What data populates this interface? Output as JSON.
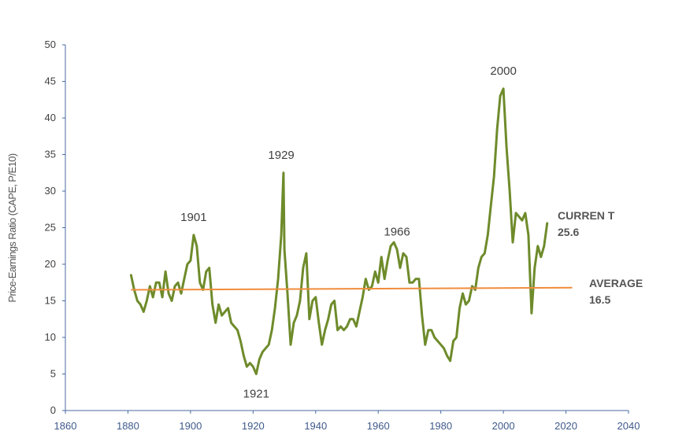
{
  "chart_data": {
    "type": "line",
    "ylabel": "Price-Earnings Ratio (CAPE, P/E10)",
    "xlim": [
      1860,
      2040
    ],
    "ylim": [
      0,
      50
    ],
    "x_ticks": [
      "1860",
      "1880",
      "1900",
      "1920",
      "1940",
      "1960",
      "1980",
      "2000",
      "2020",
      "2040"
    ],
    "y_ticks": [
      "0",
      "5",
      "10",
      "15",
      "20",
      "25",
      "30",
      "35",
      "40",
      "45",
      "50"
    ],
    "grid": false,
    "colors": {
      "series": "#6e8b2b",
      "average": "#f08c3c",
      "axis": "#4a6aa0"
    },
    "series": [
      {
        "x": [
          1881,
          1882,
          1883,
          1884,
          1885,
          1886,
          1887,
          1888,
          1889,
          1890,
          1891,
          1892,
          1893,
          1894,
          1895,
          1896,
          1897,
          1898,
          1899,
          1900,
          1901,
          1902,
          1903,
          1904,
          1905,
          1906,
          1907,
          1908,
          1909,
          1910,
          1911,
          1912,
          1913,
          1914,
          1915,
          1916,
          1917,
          1918,
          1919,
          1920,
          1921,
          1922,
          1923,
          1924,
          1925,
          1926,
          1927,
          1928,
          1929,
          1929.7,
          1930,
          1931,
          1932,
          1933,
          1934,
          1935,
          1936,
          1937,
          1938,
          1939,
          1940,
          1941,
          1942,
          1943,
          1944,
          1945,
          1946,
          1947,
          1948,
          1949,
          1950,
          1951,
          1952,
          1953,
          1954,
          1955,
          1956,
          1957,
          1958,
          1959,
          1960,
          1961,
          1962,
          1963,
          1964,
          1965,
          1966,
          1967,
          1968,
          1969,
          1970,
          1971,
          1972,
          1973,
          1974,
          1975,
          1976,
          1977,
          1978,
          1979,
          1980,
          1981,
          1982,
          1983,
          1984,
          1985,
          1986,
          1987,
          1988,
          1989,
          1990,
          1991,
          1992,
          1993,
          1994,
          1995,
          1996,
          1997,
          1998,
          1999,
          2000,
          2001,
          2002,
          2003,
          2004,
          2005,
          2006,
          2007,
          2008,
          2009,
          2010,
          2011,
          2012,
          2013,
          2014
        ],
        "values": [
          18.5,
          16.5,
          15.0,
          14.5,
          13.5,
          15.0,
          17.0,
          15.5,
          17.5,
          17.5,
          15.5,
          19.0,
          16.0,
          15.0,
          17.0,
          17.5,
          16.0,
          18.0,
          20.0,
          20.5,
          24.0,
          22.5,
          17.5,
          16.5,
          19.0,
          19.5,
          14.5,
          12.0,
          14.5,
          13.0,
          13.5,
          14.0,
          12.0,
          11.5,
          11.0,
          9.5,
          7.5,
          6.0,
          6.5,
          6.0,
          5.0,
          7.0,
          8.0,
          8.5,
          9.0,
          11.0,
          14.0,
          18.0,
          24.0,
          32.5,
          22.0,
          16.0,
          9.0,
          12.0,
          13.0,
          15.0,
          19.5,
          21.5,
          12.5,
          15.0,
          15.5,
          12.0,
          9.0,
          11.0,
          12.5,
          14.5,
          15.0,
          11.0,
          11.5,
          11.0,
          11.5,
          12.5,
          12.5,
          11.5,
          13.5,
          15.5,
          18.0,
          16.5,
          17.0,
          19.0,
          17.5,
          21.0,
          18.0,
          20.5,
          22.5,
          23.0,
          22.0,
          19.5,
          21.5,
          21.0,
          17.5,
          17.5,
          18.0,
          18.0,
          13.0,
          9.0,
          11.0,
          11.0,
          10.0,
          9.5,
          9.0,
          8.5,
          7.5,
          6.8,
          9.5,
          10.0,
          14.0,
          16.0,
          14.5,
          15.0,
          17.0,
          16.5,
          19.5,
          21.0,
          21.5,
          24.0,
          28.0,
          32.0,
          38.5,
          43.0,
          44.0,
          36.0,
          30.0,
          23.0,
          27.0,
          26.5,
          26.0,
          27.0,
          24.0,
          13.3,
          19.5,
          22.5,
          21.0,
          22.5,
          25.6
        ]
      },
      {
        "x": [
          1881,
          2022
        ],
        "values": [
          16.5,
          16.8
        ]
      }
    ],
    "annotations": [
      {
        "text": "1901",
        "x": 1901
      },
      {
        "text": "1921",
        "x": 1921
      },
      {
        "text": "1929",
        "x": 1929
      },
      {
        "text": "1966",
        "x": 1966
      },
      {
        "text": "2000",
        "x": 2000
      }
    ],
    "callouts": {
      "current": {
        "label": "CURREN T",
        "value": "25.6"
      },
      "average": {
        "label": "AVERAGE",
        "value": "16.5"
      }
    }
  }
}
